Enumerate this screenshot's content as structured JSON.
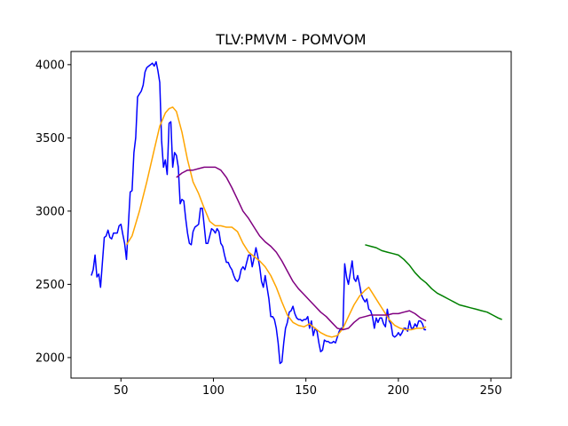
{
  "chart_data": {
    "type": "line",
    "title": "TLV:PMVM - POMVOM",
    "xlabel": "",
    "ylabel": "",
    "xlim": [
      23,
      261
    ],
    "ylim": [
      1860,
      4090
    ],
    "x_ticks": [
      50,
      100,
      150,
      200,
      250
    ],
    "y_ticks": [
      2000,
      2500,
      3000,
      3500,
      4000
    ],
    "grid": false,
    "legend": "none",
    "series": [
      {
        "color": "#0000ff",
        "points": [
          [
            34,
            2560
          ],
          [
            35,
            2600
          ],
          [
            36,
            2700
          ],
          [
            37,
            2550
          ],
          [
            38,
            2570
          ],
          [
            39,
            2480
          ],
          [
            40,
            2650
          ],
          [
            41,
            2820
          ],
          [
            42,
            2830
          ],
          [
            43,
            2870
          ],
          [
            44,
            2820
          ],
          [
            45,
            2810
          ],
          [
            46,
            2850
          ],
          [
            47,
            2850
          ],
          [
            48,
            2850
          ],
          [
            49,
            2900
          ],
          [
            50,
            2910
          ],
          [
            51,
            2840
          ],
          [
            52,
            2780
          ],
          [
            53,
            2670
          ],
          [
            54,
            2900
          ],
          [
            55,
            3130
          ],
          [
            56,
            3140
          ],
          [
            57,
            3400
          ],
          [
            58,
            3500
          ],
          [
            59,
            3780
          ],
          [
            60,
            3800
          ],
          [
            61,
            3820
          ],
          [
            62,
            3860
          ],
          [
            63,
            3950
          ],
          [
            64,
            3980
          ],
          [
            65,
            3990
          ],
          [
            66,
            4000
          ],
          [
            67,
            4010
          ],
          [
            68,
            3990
          ],
          [
            69,
            4020
          ],
          [
            70,
            3960
          ],
          [
            71,
            3880
          ],
          [
            72,
            3480
          ],
          [
            73,
            3300
          ],
          [
            74,
            3350
          ],
          [
            75,
            3250
          ],
          [
            76,
            3600
          ],
          [
            77,
            3610
          ],
          [
            78,
            3300
          ],
          [
            79,
            3400
          ],
          [
            80,
            3380
          ],
          [
            81,
            3300
          ],
          [
            82,
            3050
          ],
          [
            83,
            3080
          ],
          [
            84,
            3070
          ],
          [
            85,
            2950
          ],
          [
            86,
            2850
          ],
          [
            87,
            2780
          ],
          [
            88,
            2770
          ],
          [
            89,
            2860
          ],
          [
            90,
            2890
          ],
          [
            91,
            2900
          ],
          [
            92,
            2910
          ],
          [
            93,
            3020
          ],
          [
            94,
            3020
          ],
          [
            95,
            2900
          ],
          [
            96,
            2780
          ],
          [
            97,
            2780
          ],
          [
            98,
            2830
          ],
          [
            99,
            2880
          ],
          [
            100,
            2870
          ],
          [
            101,
            2850
          ],
          [
            102,
            2880
          ],
          [
            103,
            2860
          ],
          [
            104,
            2780
          ],
          [
            105,
            2760
          ],
          [
            106,
            2700
          ],
          [
            107,
            2650
          ],
          [
            108,
            2650
          ],
          [
            109,
            2620
          ],
          [
            110,
            2600
          ],
          [
            111,
            2560
          ],
          [
            112,
            2530
          ],
          [
            113,
            2520
          ],
          [
            114,
            2540
          ],
          [
            115,
            2600
          ],
          [
            116,
            2620
          ],
          [
            117,
            2600
          ],
          [
            118,
            2650
          ],
          [
            119,
            2700
          ],
          [
            120,
            2700
          ],
          [
            121,
            2620
          ],
          [
            122,
            2680
          ],
          [
            123,
            2750
          ],
          [
            124,
            2690
          ],
          [
            125,
            2620
          ],
          [
            126,
            2520
          ],
          [
            127,
            2480
          ],
          [
            128,
            2560
          ],
          [
            129,
            2480
          ],
          [
            130,
            2400
          ],
          [
            131,
            2280
          ],
          [
            132,
            2280
          ],
          [
            133,
            2260
          ],
          [
            134,
            2200
          ],
          [
            135,
            2100
          ],
          [
            136,
            1960
          ],
          [
            137,
            1970
          ],
          [
            138,
            2100
          ],
          [
            139,
            2200
          ],
          [
            140,
            2240
          ],
          [
            141,
            2310
          ],
          [
            142,
            2320
          ],
          [
            143,
            2350
          ],
          [
            144,
            2300
          ],
          [
            145,
            2270
          ],
          [
            146,
            2260
          ],
          [
            147,
            2260
          ],
          [
            148,
            2250
          ],
          [
            149,
            2260
          ],
          [
            150,
            2260
          ],
          [
            151,
            2280
          ],
          [
            152,
            2200
          ],
          [
            153,
            2250
          ],
          [
            154,
            2150
          ],
          [
            155,
            2200
          ],
          [
            156,
            2180
          ],
          [
            157,
            2100
          ],
          [
            158,
            2040
          ],
          [
            159,
            2050
          ],
          [
            160,
            2120
          ],
          [
            161,
            2110
          ],
          [
            162,
            2110
          ],
          [
            163,
            2100
          ],
          [
            164,
            2100
          ],
          [
            165,
            2110
          ],
          [
            166,
            2100
          ],
          [
            167,
            2140
          ],
          [
            168,
            2180
          ],
          [
            169,
            2200
          ],
          [
            170,
            2200
          ],
          [
            171,
            2640
          ],
          [
            172,
            2550
          ],
          [
            173,
            2500
          ],
          [
            174,
            2580
          ],
          [
            175,
            2660
          ],
          [
            176,
            2540
          ],
          [
            177,
            2520
          ],
          [
            178,
            2560
          ],
          [
            179,
            2500
          ],
          [
            180,
            2430
          ],
          [
            181,
            2400
          ],
          [
            182,
            2380
          ],
          [
            183,
            2400
          ],
          [
            184,
            2330
          ],
          [
            185,
            2320
          ],
          [
            186,
            2280
          ],
          [
            187,
            2200
          ],
          [
            188,
            2270
          ],
          [
            189,
            2240
          ],
          [
            190,
            2270
          ],
          [
            191,
            2270
          ],
          [
            192,
            2230
          ],
          [
            193,
            2210
          ],
          [
            194,
            2330
          ],
          [
            195,
            2250
          ],
          [
            196,
            2230
          ],
          [
            197,
            2150
          ],
          [
            198,
            2140
          ],
          [
            199,
            2150
          ],
          [
            200,
            2170
          ],
          [
            201,
            2150
          ],
          [
            202,
            2170
          ],
          [
            203,
            2200
          ],
          [
            204,
            2200
          ],
          [
            205,
            2180
          ],
          [
            206,
            2250
          ],
          [
            207,
            2200
          ],
          [
            208,
            2200
          ],
          [
            209,
            2230
          ],
          [
            210,
            2210
          ],
          [
            211,
            2250
          ],
          [
            212,
            2250
          ],
          [
            213,
            2230
          ],
          [
            214,
            2190
          ],
          [
            215,
            2190
          ]
        ]
      },
      {
        "color": "#ffa500",
        "points": [
          [
            53,
            2770
          ],
          [
            56,
            2830
          ],
          [
            60,
            3000
          ],
          [
            64,
            3200
          ],
          [
            68,
            3420
          ],
          [
            71,
            3580
          ],
          [
            74,
            3670
          ],
          [
            76,
            3700
          ],
          [
            78,
            3710
          ],
          [
            80,
            3680
          ],
          [
            83,
            3540
          ],
          [
            86,
            3350
          ],
          [
            89,
            3200
          ],
          [
            92,
            3120
          ],
          [
            95,
            3020
          ],
          [
            98,
            2930
          ],
          [
            101,
            2900
          ],
          [
            104,
            2900
          ],
          [
            107,
            2890
          ],
          [
            110,
            2890
          ],
          [
            113,
            2860
          ],
          [
            116,
            2780
          ],
          [
            119,
            2720
          ],
          [
            122,
            2690
          ],
          [
            125,
            2660
          ],
          [
            128,
            2620
          ],
          [
            131,
            2560
          ],
          [
            134,
            2480
          ],
          [
            137,
            2380
          ],
          [
            140,
            2290
          ],
          [
            143,
            2240
          ],
          [
            146,
            2220
          ],
          [
            149,
            2210
          ],
          [
            152,
            2230
          ],
          [
            155,
            2200
          ],
          [
            158,
            2170
          ],
          [
            161,
            2150
          ],
          [
            164,
            2140
          ],
          [
            167,
            2150
          ],
          [
            170,
            2200
          ],
          [
            173,
            2280
          ],
          [
            176,
            2360
          ],
          [
            179,
            2420
          ],
          [
            182,
            2460
          ],
          [
            184,
            2480
          ],
          [
            186,
            2440
          ],
          [
            189,
            2380
          ],
          [
            192,
            2320
          ],
          [
            195,
            2260
          ],
          [
            198,
            2220
          ],
          [
            201,
            2200
          ],
          [
            204,
            2190
          ],
          [
            207,
            2190
          ],
          [
            210,
            2200
          ],
          [
            213,
            2200
          ],
          [
            215,
            2210
          ]
        ]
      },
      {
        "color": "#800080",
        "points": [
          [
            80,
            3230
          ],
          [
            83,
            3260
          ],
          [
            86,
            3280
          ],
          [
            89,
            3280
          ],
          [
            92,
            3290
          ],
          [
            95,
            3300
          ],
          [
            98,
            3300
          ],
          [
            101,
            3300
          ],
          [
            104,
            3280
          ],
          [
            107,
            3230
          ],
          [
            110,
            3160
          ],
          [
            113,
            3080
          ],
          [
            116,
            3000
          ],
          [
            119,
            2950
          ],
          [
            122,
            2890
          ],
          [
            125,
            2830
          ],
          [
            128,
            2790
          ],
          [
            131,
            2760
          ],
          [
            134,
            2720
          ],
          [
            137,
            2660
          ],
          [
            140,
            2590
          ],
          [
            143,
            2520
          ],
          [
            146,
            2470
          ],
          [
            149,
            2430
          ],
          [
            152,
            2390
          ],
          [
            155,
            2350
          ],
          [
            158,
            2310
          ],
          [
            161,
            2280
          ],
          [
            164,
            2240
          ],
          [
            167,
            2200
          ],
          [
            170,
            2190
          ],
          [
            173,
            2200
          ],
          [
            176,
            2240
          ],
          [
            179,
            2270
          ],
          [
            182,
            2280
          ],
          [
            185,
            2290
          ],
          [
            188,
            2290
          ],
          [
            191,
            2290
          ],
          [
            194,
            2290
          ],
          [
            197,
            2300
          ],
          [
            200,
            2300
          ],
          [
            203,
            2310
          ],
          [
            206,
            2320
          ],
          [
            209,
            2300
          ],
          [
            212,
            2270
          ],
          [
            215,
            2250
          ]
        ]
      },
      {
        "color": "#008000",
        "points": [
          [
            182,
            2770
          ],
          [
            185,
            2760
          ],
          [
            188,
            2750
          ],
          [
            191,
            2730
          ],
          [
            194,
            2720
          ],
          [
            197,
            2710
          ],
          [
            200,
            2700
          ],
          [
            203,
            2670
          ],
          [
            206,
            2630
          ],
          [
            209,
            2580
          ],
          [
            212,
            2540
          ],
          [
            215,
            2510
          ],
          [
            218,
            2470
          ],
          [
            221,
            2440
          ],
          [
            224,
            2420
          ],
          [
            227,
            2400
          ],
          [
            230,
            2380
          ],
          [
            233,
            2360
          ],
          [
            236,
            2350
          ],
          [
            239,
            2340
          ],
          [
            242,
            2330
          ],
          [
            245,
            2320
          ],
          [
            248,
            2310
          ],
          [
            251,
            2290
          ],
          [
            254,
            2270
          ],
          [
            256,
            2260
          ]
        ]
      }
    ]
  }
}
